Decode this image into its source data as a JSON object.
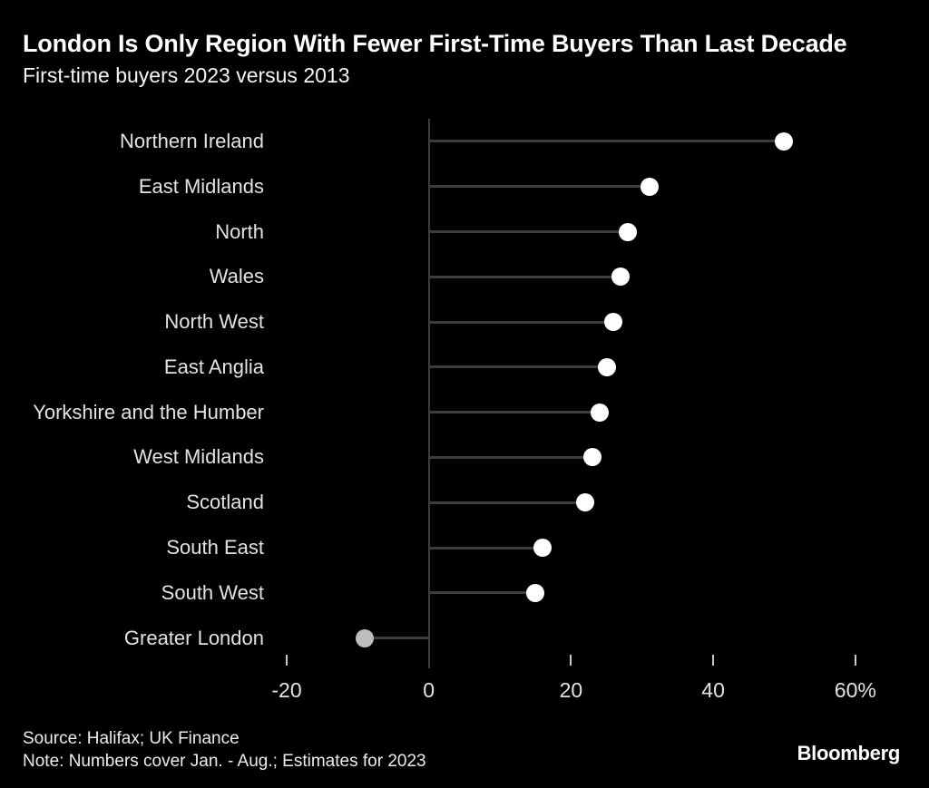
{
  "header": {
    "title": "London Is Only Region With Fewer First-Time Buyers Than Last Decade",
    "subtitle": "First-time buyers 2023 versus 2013"
  },
  "chart_data": {
    "type": "bar",
    "style": "lollipop",
    "orientation": "horizontal",
    "title": "London Is Only Region With Fewer First-Time Buyers Than Last Decade",
    "subtitle": "First-time buyers 2023 versus 2013",
    "categories": [
      "Northern Ireland",
      "East Midlands",
      "North",
      "Wales",
      "North West",
      "East Anglia",
      "Yorkshire and the Humber",
      "West Midlands",
      "Scotland",
      "South East",
      "South West",
      "Greater London"
    ],
    "values": [
      50,
      31,
      28,
      27,
      26,
      25,
      24,
      23,
      22,
      16,
      15,
      -9
    ],
    "unit": "%",
    "xlabel": "",
    "ylabel": "",
    "xlim": [
      -20,
      60
    ],
    "x_ticks": [
      -20,
      0,
      20,
      40,
      60
    ],
    "x_tick_labels": [
      "-20",
      "0",
      "20",
      "40",
      "60%"
    ],
    "grid": false,
    "legend": "none",
    "colors": {
      "background": "#000000",
      "dot_positive": "#ffffff",
      "dot_negative": "#bdbdbd",
      "stem": "#3d3d3d",
      "axis": "#3d3d3d",
      "tick": "#c8c8c8",
      "category_label": "#e2e2e2"
    }
  },
  "footer": {
    "source": "Source: Halifax; UK Finance",
    "note": "Note: Numbers cover Jan. - Aug.; Estimates for 2023",
    "logo": "Bloomberg"
  }
}
